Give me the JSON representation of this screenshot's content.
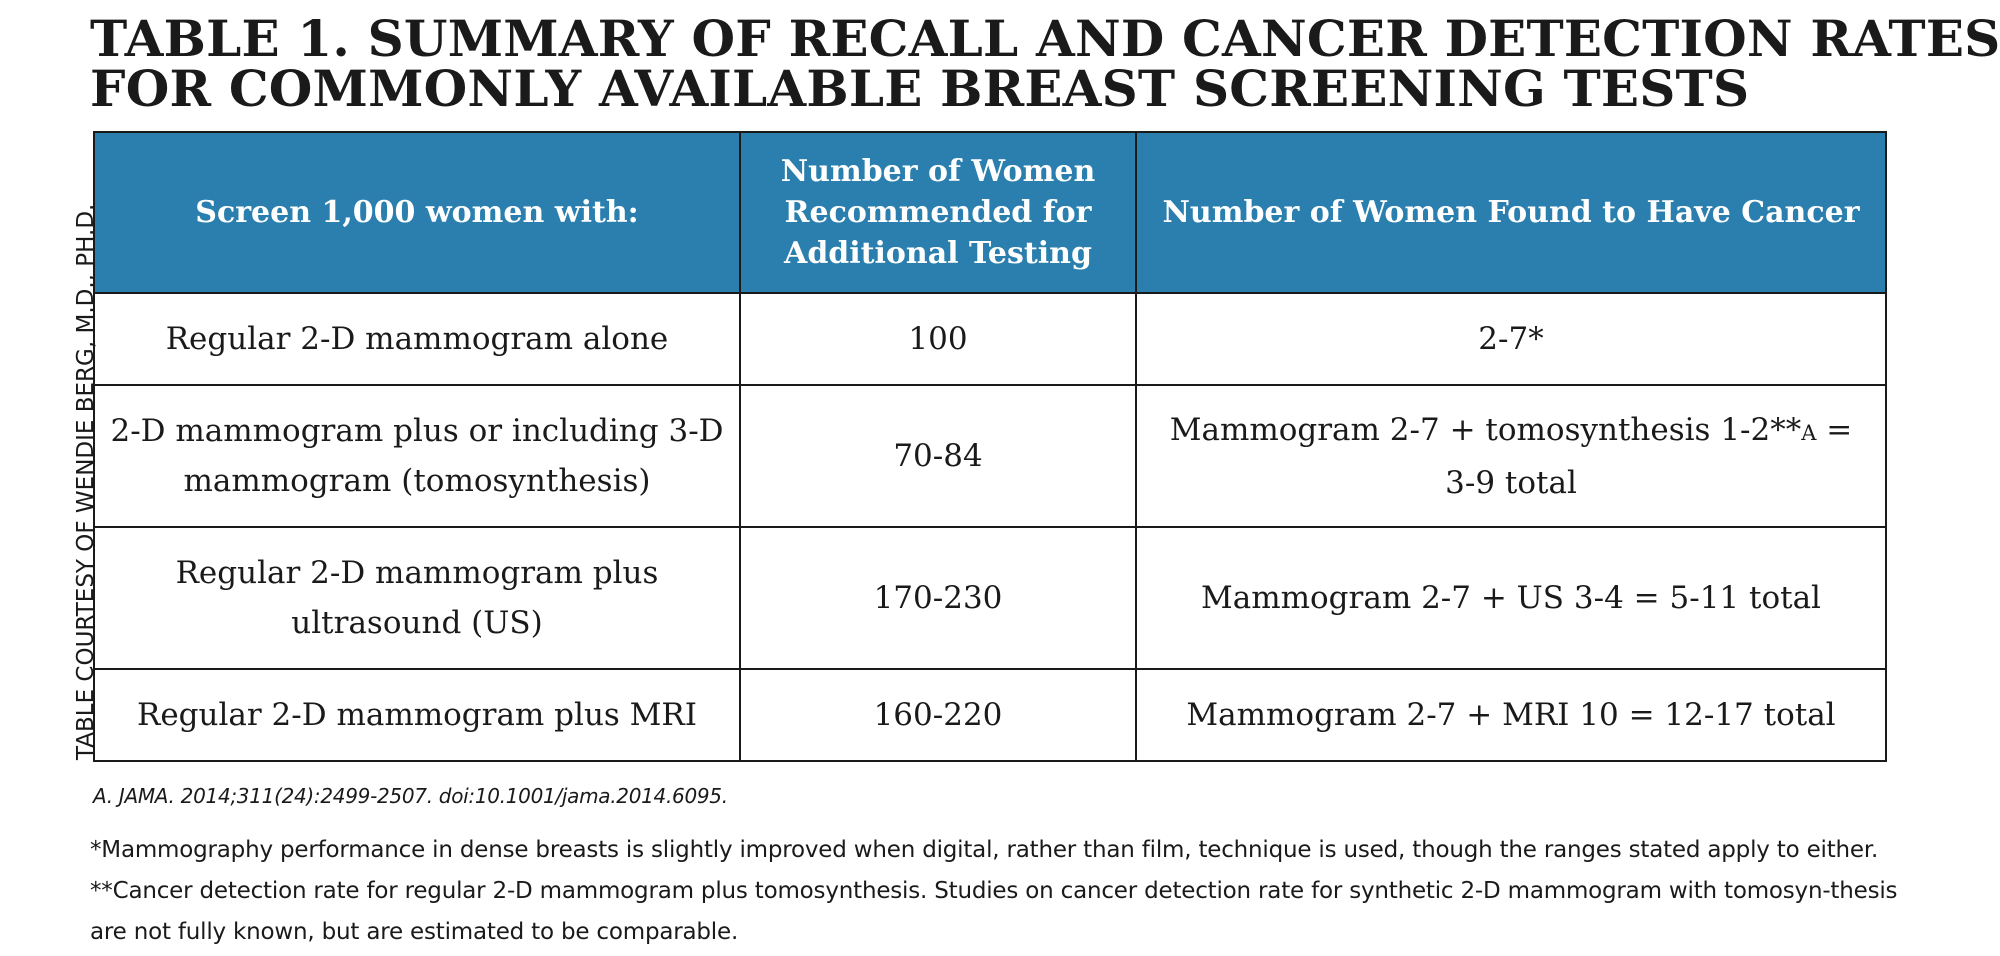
{
  "title": {
    "line1": "TABLE 1. SUMMARY OF RECALL AND CANCER DETECTION RATES",
    "line2": "FOR COMMONLY AVAILABLE BREAST SCREENING TESTS"
  },
  "credit": "TABLE COURTESY OF WENDIE BERG, M.D., PH.D.",
  "table": {
    "headers": [
      "Screen 1,000 women with:",
      "Number of Women Recommended for Additional Testing",
      "Number of Women Found to Have Cancer"
    ],
    "header_color": "#2a7fae",
    "rows": [
      {
        "test": "Regular 2-D mammogram alone",
        "recalled": "100",
        "cancer": "2-7*"
      },
      {
        "test": "2-D mammogram plus or including 3-D mammogram (tomosynthesis)",
        "recalled": "70-84",
        "cancer_pre": "Mammogram 2-7 + tomosynthesis 1-2**",
        "cancer_sup": "A",
        "cancer_post": " = 3-9 total"
      },
      {
        "test": "Regular 2-D mammogram plus ultrasound (US)",
        "recalled": "170-230",
        "cancer": "Mammogram 2-7 + US 3-4 = 5-11 total"
      },
      {
        "test": "Regular 2-D mammogram plus MRI",
        "recalled": "160-220",
        "cancer": "Mammogram 2-7 + MRI 10 = 12-17 total"
      }
    ]
  },
  "citation": "A. JAMA. 2014;311(24):2499-2507. doi:10.1001/jama.2014.6095.",
  "footnotes": [
    "*Mammography performance in dense breasts is slightly improved when digital, rather than film, technique is used, though the ranges stated apply to either.",
    "**Cancer detection rate for regular 2-D mammogram plus tomosynthesis. Studies on cancer detection rate for synthetic 2-D mammogram with tomosyn-thesis are not fully known, but are estimated to be comparable."
  ]
}
